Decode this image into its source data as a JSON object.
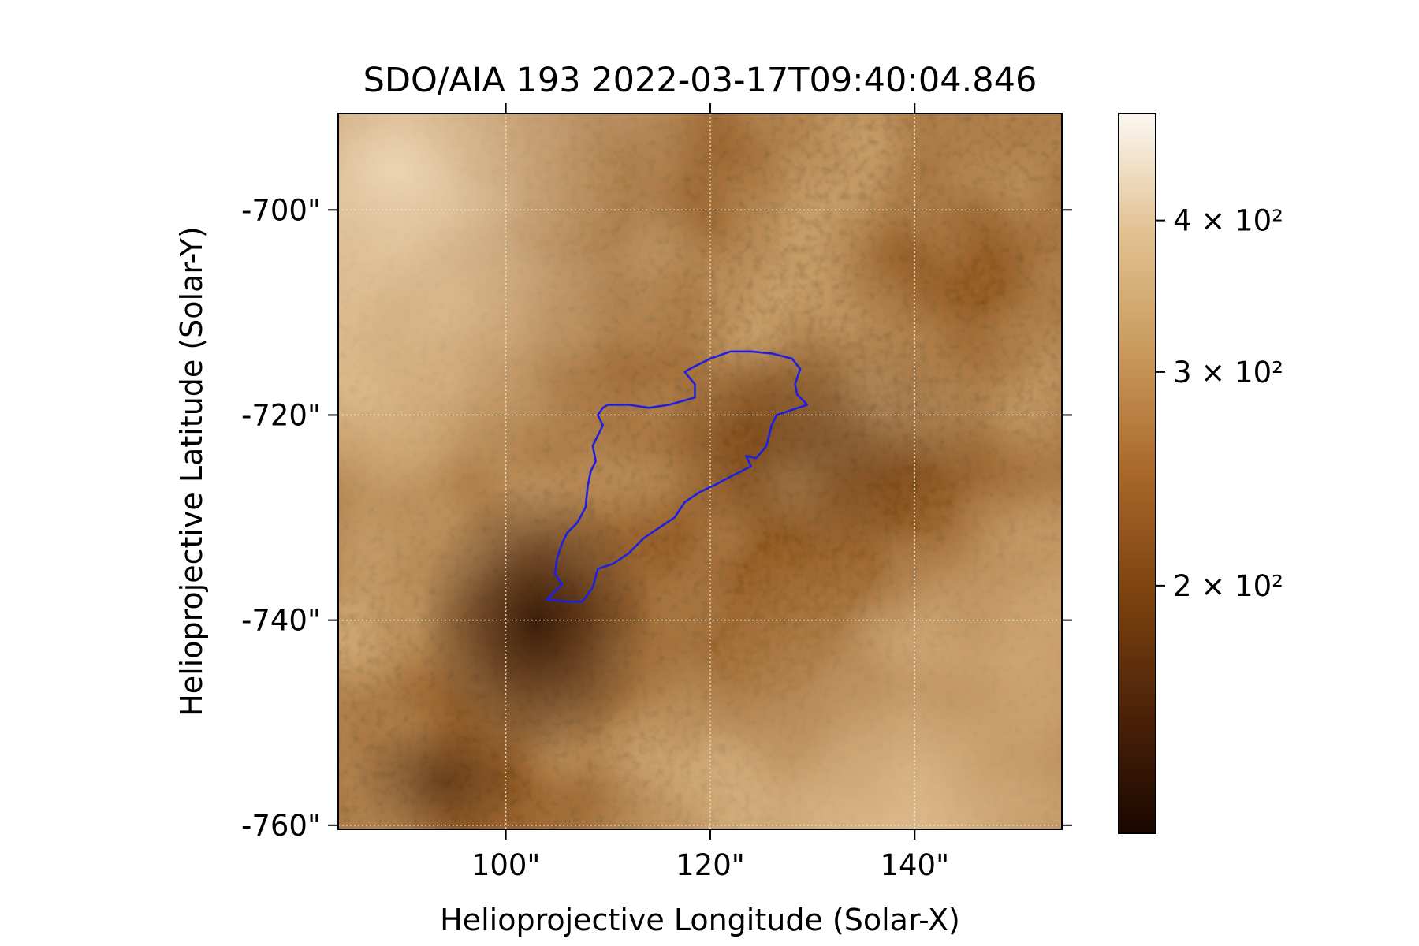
{
  "chart_data": {
    "type": "heatmap",
    "title": "SDO/AIA 193 2022-03-17T09:40:04.846",
    "xlabel": "Helioprojective Longitude (Solar-X)",
    "ylabel": "Helioprojective Latitude (Solar-Y)",
    "xlim": [
      83.6,
      154.4
    ],
    "ylim": [
      -760.4,
      -690.6
    ],
    "x_ticks": [
      {
        "value": 100,
        "label": "100\""
      },
      {
        "value": 120,
        "label": "120\""
      },
      {
        "value": 140,
        "label": "140\""
      }
    ],
    "y_ticks": [
      {
        "value": -700,
        "label": "-700\""
      },
      {
        "value": -720,
        "label": "-720\""
      },
      {
        "value": -740,
        "label": "-740\""
      },
      {
        "value": -760,
        "label": "-760\""
      }
    ],
    "grid": true,
    "colormap": "sdoaia193",
    "colormap_stops": [
      "#1a0700",
      "#4a2108",
      "#7b420f",
      "#a8682a",
      "#c99a5c",
      "#e2c394",
      "#fbf8f2"
    ],
    "colorbar": {
      "scale": "log",
      "range": [
        125,
        490
      ],
      "ticks": [
        {
          "value": 200,
          "label": "2 × 10²"
        },
        {
          "value": 300,
          "label": "3 × 10²"
        },
        {
          "value": 400,
          "label": "4 × 10²"
        }
      ]
    },
    "contour": {
      "color": "#1f1fe0",
      "points": [
        [
          104.0,
          -738.0
        ],
        [
          106.0,
          -738.2
        ],
        [
          107.5,
          -738.2
        ],
        [
          108.5,
          -736.8
        ],
        [
          109.0,
          -735.0
        ],
        [
          110.5,
          -734.5
        ],
        [
          112.0,
          -733.5
        ],
        [
          113.5,
          -732.0
        ],
        [
          115.0,
          -731.0
        ],
        [
          116.5,
          -730.0
        ],
        [
          117.5,
          -728.5
        ],
        [
          119.0,
          -727.5
        ],
        [
          120.5,
          -726.8
        ],
        [
          122.0,
          -726.0
        ],
        [
          124.0,
          -725.0
        ],
        [
          123.5,
          -724.0
        ],
        [
          124.5,
          -724.2
        ],
        [
          125.5,
          -723.0
        ],
        [
          126.0,
          -721.0
        ],
        [
          126.5,
          -720.0
        ],
        [
          128.0,
          -719.5
        ],
        [
          129.5,
          -719.0
        ],
        [
          128.5,
          -718.0
        ],
        [
          128.3,
          -717.0
        ],
        [
          128.8,
          -715.5
        ],
        [
          128.0,
          -714.5
        ],
        [
          126.0,
          -714.0
        ],
        [
          124.0,
          -713.8
        ],
        [
          122.0,
          -713.8
        ],
        [
          120.0,
          -714.5
        ],
        [
          118.0,
          -715.5
        ],
        [
          117.5,
          -715.8
        ],
        [
          118.5,
          -717.0
        ],
        [
          118.5,
          -718.3
        ],
        [
          116.0,
          -719.0
        ],
        [
          114.0,
          -719.3
        ],
        [
          112.0,
          -719.0
        ],
        [
          110.0,
          -719.0
        ],
        [
          109.5,
          -719.3
        ],
        [
          109.0,
          -720.0
        ],
        [
          109.5,
          -721.0
        ],
        [
          109.0,
          -722.0
        ],
        [
          108.5,
          -723.0
        ],
        [
          108.8,
          -724.5
        ],
        [
          108.3,
          -725.5
        ],
        [
          108.0,
          -727.0
        ],
        [
          107.8,
          -729.0
        ],
        [
          107.0,
          -730.5
        ],
        [
          106.0,
          -731.5
        ],
        [
          105.5,
          -732.5
        ],
        [
          105.0,
          -734.0
        ],
        [
          104.8,
          -735.5
        ],
        [
          105.5,
          -736.5
        ],
        [
          104.5,
          -737.5
        ],
        [
          104.0,
          -738.0
        ]
      ]
    }
  }
}
